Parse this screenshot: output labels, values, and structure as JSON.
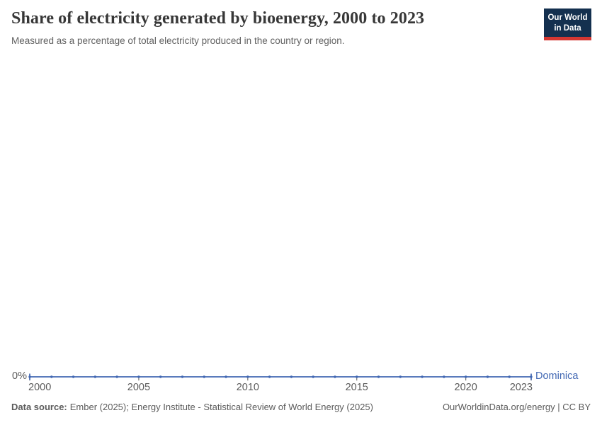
{
  "header": {
    "title": "Share of electricity generated by bioenergy, 2000 to 2023",
    "subtitle": "Measured as a percentage of total electricity produced in the country or region."
  },
  "logo": {
    "line1": "Our World",
    "line2": "in Data",
    "bg_color": "#14304F",
    "bar_color": "#D53732"
  },
  "chart_data": {
    "type": "line",
    "title": "Share of electricity generated by bioenergy, 2000 to 2023",
    "subtitle": "Measured as a percentage of total electricity produced in the country or region.",
    "unit": "%",
    "x": [
      2000,
      2001,
      2002,
      2003,
      2004,
      2005,
      2006,
      2007,
      2008,
      2009,
      2010,
      2011,
      2012,
      2013,
      2014,
      2015,
      2016,
      2017,
      2018,
      2019,
      2020,
      2021,
      2022,
      2023
    ],
    "series": [
      {
        "name": "Dominica",
        "color": "#4268B3",
        "values": [
          0,
          0,
          0,
          0,
          0,
          0,
          0,
          0,
          0,
          0,
          0,
          0,
          0,
          0,
          0,
          0,
          0,
          0,
          0,
          0,
          0,
          0,
          0,
          0
        ]
      }
    ],
    "x_ticks": [
      2000,
      2005,
      2010,
      2015,
      2020,
      2023
    ],
    "y_ticks": [
      {
        "value": 0,
        "label": "0%"
      }
    ],
    "ylim": [
      0,
      0
    ],
    "grid": false,
    "legend_position": "right-of-line-end",
    "marker": "dot-every-year"
  },
  "footer": {
    "data_source_label": "Data source:",
    "data_source_text": "Ember (2025); Energy Institute - Statistical Review of World Energy (2025)",
    "attribution": "OurWorldinData.org/energy | CC BY"
  },
  "colors": {
    "accent": "#4268B3",
    "axis_text": "#5b5b5b",
    "tick_mark": "#6e6e6e",
    "title_text": "#373737"
  }
}
